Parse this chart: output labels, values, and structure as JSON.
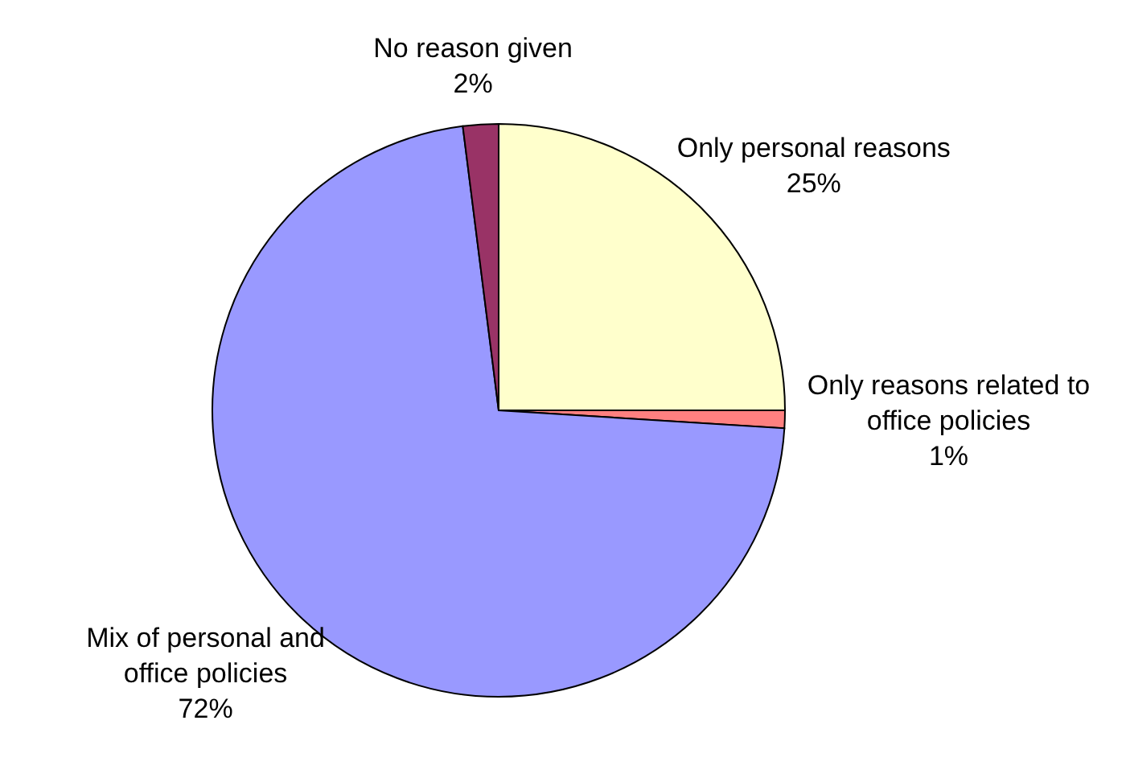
{
  "chart_data": {
    "type": "pie",
    "categories": [
      "Only personal reasons",
      "Only reasons related to office policies",
      "Mix of personal and office policies",
      "No reason given"
    ],
    "values": [
      25,
      1,
      72,
      2
    ],
    "colors": [
      "#ffffcc",
      "#ff8080",
      "#9999ff",
      "#993366"
    ],
    "value_labels": [
      "25%",
      "1%",
      "72%",
      "2%"
    ]
  }
}
